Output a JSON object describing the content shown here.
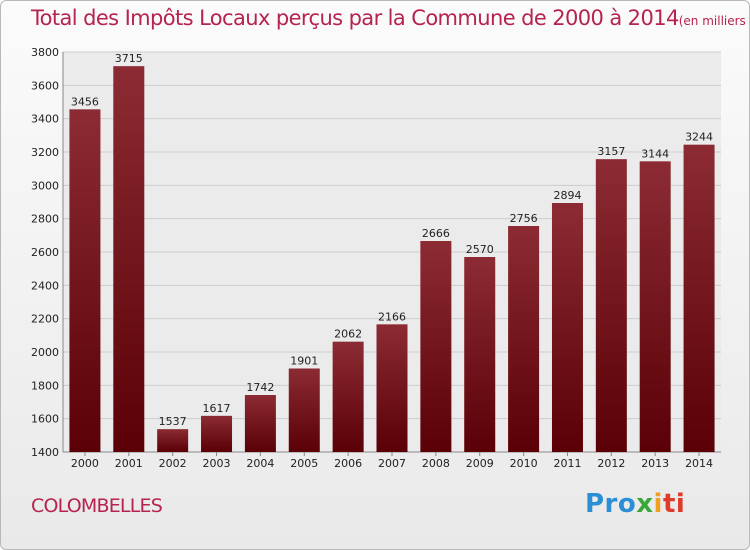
{
  "header": {
    "title": "Total des Impôts Locaux perçus par la Commune de 2000 à 2014",
    "unit": "(en milliers d'€)"
  },
  "footer": {
    "commune": "COLOMBELLES",
    "logo": {
      "p1": "Pro",
      "p2": "x",
      "p3": "i",
      "p4": "ti"
    }
  },
  "colors": {
    "bar_top": "#8c2b33",
    "bar_bottom": "#5a0006",
    "title": "#b6234e",
    "grid": "#cccccc"
  },
  "chart_data": {
    "type": "bar",
    "title": "Total des Impôts Locaux perçus par la Commune de 2000 à 2014",
    "xlabel": "",
    "ylabel": "",
    "categories": [
      "2000",
      "2001",
      "2002",
      "2003",
      "2004",
      "2005",
      "2006",
      "2007",
      "2008",
      "2009",
      "2010",
      "2011",
      "2012",
      "2013",
      "2014"
    ],
    "values": [
      3456,
      3715,
      1537,
      1617,
      1742,
      1901,
      2062,
      2166,
      2666,
      2570,
      2756,
      2894,
      3157,
      3144,
      3244
    ],
    "ylim": [
      1400,
      3800
    ],
    "yticks": [
      1400,
      1600,
      1800,
      2000,
      2200,
      2400,
      2600,
      2800,
      3000,
      3200,
      3400,
      3600,
      3800
    ],
    "grid": true
  }
}
